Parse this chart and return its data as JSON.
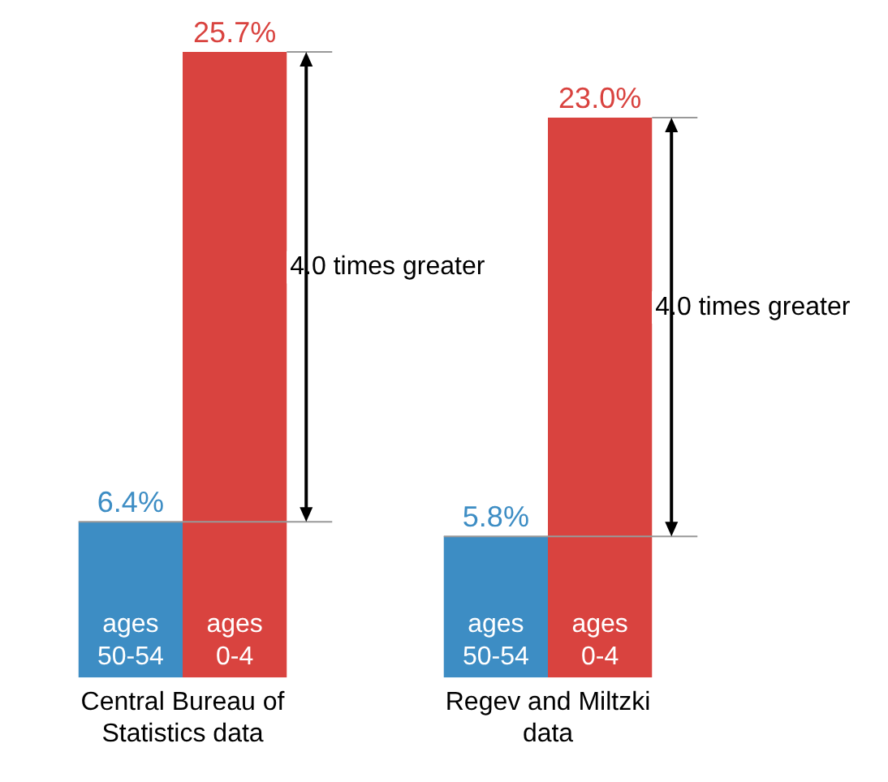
{
  "chart_data": {
    "type": "bar",
    "categories": [
      "Central Bureau of Statistics data",
      "Regev and Miltzki data"
    ],
    "series": [
      {
        "name": "ages 50-54",
        "color": "#3d8dc4",
        "values": [
          6.4,
          5.8
        ],
        "value_labels": [
          "6.4%",
          "5.8%"
        ]
      },
      {
        "name": "ages 0-4",
        "color": "#d9433f",
        "values": [
          25.7,
          23.0
        ],
        "value_labels": [
          "25.7%",
          "23.0%"
        ]
      }
    ],
    "grid": false,
    "legend": false,
    "annotations": [
      "4.0 times greater",
      "4.0 times greater"
    ]
  }
}
